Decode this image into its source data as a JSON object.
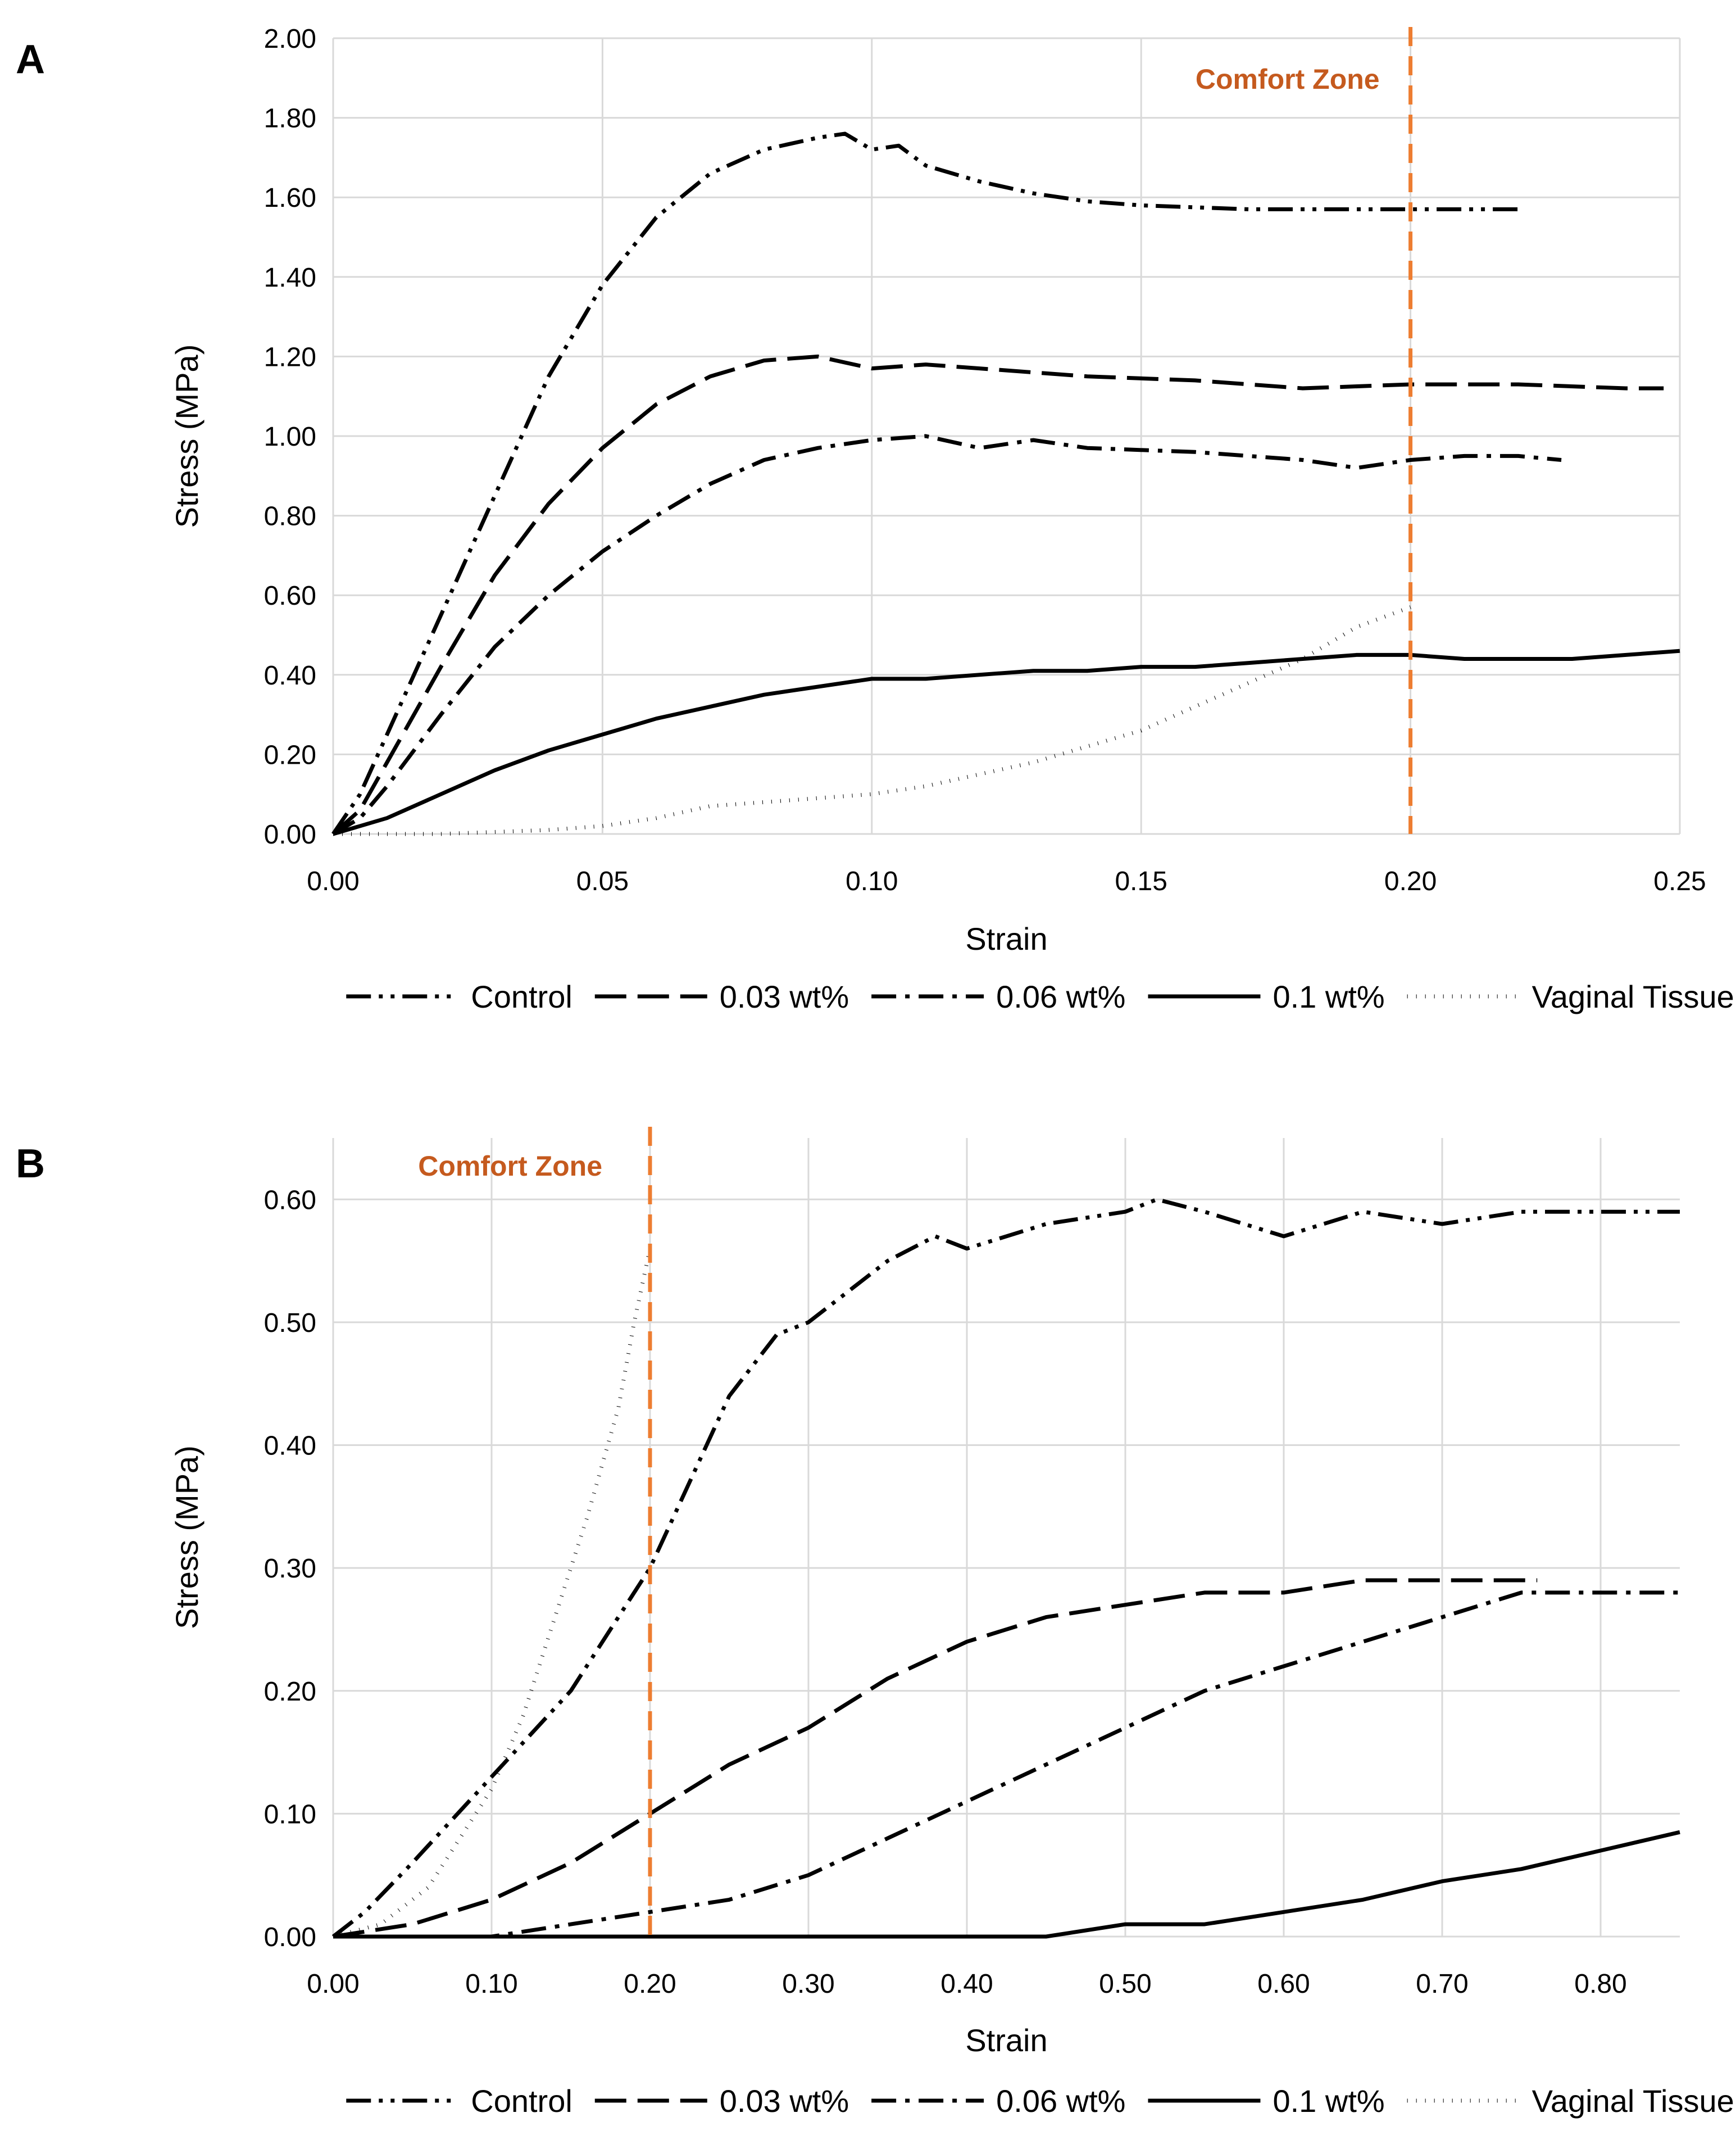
{
  "colors": {
    "comfort_line": "#ed7d31",
    "comfort_label": "#c55a1e",
    "series": "#000000",
    "grid": "#d9d9d9"
  },
  "chart_data": [
    {
      "type": "line",
      "panel": "A",
      "xlabel": "Strain",
      "ylabel": "Stress (MPa)",
      "xlim": [
        0,
        0.25
      ],
      "ylim": [
        0,
        2.0
      ],
      "x_ticks": [
        "0.00",
        "0.05",
        "0.10",
        "0.15",
        "0.20",
        "0.25"
      ],
      "y_ticks": [
        "0.00",
        "0.20",
        "0.40",
        "0.60",
        "0.80",
        "1.00",
        "1.20",
        "1.40",
        "1.60",
        "1.80",
        "2.00"
      ],
      "grid": true,
      "legend_position": "bottom",
      "annotation": {
        "text": "Comfort Zone",
        "x": 0.2
      },
      "series": [
        {
          "name": "Control",
          "dash": "dashdotdot",
          "x": [
            0,
            0.005,
            0.01,
            0.02,
            0.03,
            0.04,
            0.05,
            0.06,
            0.07,
            0.08,
            0.09,
            0.095,
            0.1,
            0.105,
            0.11,
            0.12,
            0.13,
            0.14,
            0.15,
            0.17,
            0.19,
            0.2,
            0.21,
            0.22
          ],
          "y": [
            0,
            0.1,
            0.25,
            0.55,
            0.85,
            1.15,
            1.38,
            1.55,
            1.66,
            1.72,
            1.75,
            1.76,
            1.72,
            1.73,
            1.68,
            1.64,
            1.61,
            1.59,
            1.58,
            1.57,
            1.57,
            1.57,
            1.57,
            1.57
          ]
        },
        {
          "name": "0.03 wt%",
          "dash": "longdash",
          "x": [
            0,
            0.005,
            0.01,
            0.02,
            0.03,
            0.04,
            0.05,
            0.06,
            0.07,
            0.08,
            0.09,
            0.1,
            0.11,
            0.12,
            0.14,
            0.16,
            0.18,
            0.2,
            0.22,
            0.24,
            0.247
          ],
          "y": [
            0,
            0.06,
            0.18,
            0.42,
            0.65,
            0.83,
            0.97,
            1.08,
            1.15,
            1.19,
            1.2,
            1.17,
            1.18,
            1.17,
            1.15,
            1.14,
            1.12,
            1.13,
            1.13,
            1.12,
            1.12
          ]
        },
        {
          "name": "0.06 wt%",
          "dash": "dashdot",
          "x": [
            0,
            0.005,
            0.01,
            0.02,
            0.03,
            0.04,
            0.05,
            0.06,
            0.07,
            0.08,
            0.09,
            0.1,
            0.11,
            0.12,
            0.13,
            0.14,
            0.16,
            0.18,
            0.19,
            0.2,
            0.21,
            0.22,
            0.228
          ],
          "y": [
            0,
            0.04,
            0.12,
            0.3,
            0.47,
            0.6,
            0.71,
            0.8,
            0.88,
            0.94,
            0.97,
            0.99,
            1.0,
            0.97,
            0.99,
            0.97,
            0.96,
            0.94,
            0.92,
            0.94,
            0.95,
            0.95,
            0.94
          ]
        },
        {
          "name": "0.1 wt%",
          "dash": "solid",
          "x": [
            0,
            0.01,
            0.02,
            0.03,
            0.04,
            0.05,
            0.06,
            0.07,
            0.08,
            0.09,
            0.1,
            0.11,
            0.12,
            0.13,
            0.14,
            0.15,
            0.16,
            0.17,
            0.18,
            0.19,
            0.2,
            0.21,
            0.22,
            0.23,
            0.24,
            0.25
          ],
          "y": [
            0,
            0.04,
            0.1,
            0.16,
            0.21,
            0.25,
            0.29,
            0.32,
            0.35,
            0.37,
            0.39,
            0.39,
            0.4,
            0.41,
            0.41,
            0.42,
            0.42,
            0.43,
            0.44,
            0.45,
            0.45,
            0.44,
            0.44,
            0.44,
            0.45,
            0.46
          ]
        },
        {
          "name": "Vaginal Tissue",
          "dash": "dotted",
          "x": [
            0,
            0.02,
            0.04,
            0.05,
            0.06,
            0.07,
            0.08,
            0.09,
            0.1,
            0.11,
            0.12,
            0.13,
            0.14,
            0.15,
            0.16,
            0.17,
            0.18,
            0.19,
            0.2
          ],
          "y": [
            0,
            0.0,
            0.01,
            0.02,
            0.04,
            0.07,
            0.08,
            0.09,
            0.1,
            0.12,
            0.15,
            0.18,
            0.22,
            0.26,
            0.32,
            0.38,
            0.44,
            0.52,
            0.57
          ]
        }
      ]
    },
    {
      "type": "line",
      "panel": "B",
      "xlabel": "Strain",
      "ylabel": "Stress (MPa)",
      "xlim": [
        0,
        0.85
      ],
      "ylim": [
        0,
        0.65
      ],
      "x_ticks": [
        "0.00",
        "0.10",
        "0.20",
        "0.30",
        "0.40",
        "0.50",
        "0.60",
        "0.70",
        "0.80"
      ],
      "y_ticks": [
        "0.00",
        "0.10",
        "0.20",
        "0.30",
        "0.40",
        "0.50",
        "0.60"
      ],
      "grid": true,
      "legend_position": "bottom",
      "annotation": {
        "text": "Comfort Zone",
        "x": 0.2
      },
      "series": [
        {
          "name": "Control",
          "dash": "dashdotdot",
          "x": [
            0,
            0.02,
            0.05,
            0.1,
            0.15,
            0.2,
            0.25,
            0.28,
            0.3,
            0.35,
            0.38,
            0.4,
            0.45,
            0.5,
            0.52,
            0.55,
            0.6,
            0.65,
            0.7,
            0.75,
            0.8,
            0.85
          ],
          "y": [
            0,
            0.02,
            0.06,
            0.13,
            0.2,
            0.3,
            0.44,
            0.49,
            0.5,
            0.55,
            0.57,
            0.56,
            0.58,
            0.59,
            0.6,
            0.59,
            0.57,
            0.59,
            0.58,
            0.59,
            0.59,
            0.59
          ]
        },
        {
          "name": "0.03 wt%",
          "dash": "longdash",
          "x": [
            0,
            0.05,
            0.1,
            0.15,
            0.2,
            0.25,
            0.3,
            0.35,
            0.4,
            0.45,
            0.5,
            0.55,
            0.6,
            0.65,
            0.7,
            0.75,
            0.76
          ],
          "y": [
            0,
            0.01,
            0.03,
            0.06,
            0.1,
            0.14,
            0.17,
            0.21,
            0.24,
            0.26,
            0.27,
            0.28,
            0.28,
            0.29,
            0.29,
            0.29,
            0.29
          ]
        },
        {
          "name": "0.06 wt%",
          "dash": "dashdot",
          "x": [
            0,
            0.1,
            0.15,
            0.2,
            0.25,
            0.3,
            0.35,
            0.4,
            0.45,
            0.5,
            0.55,
            0.6,
            0.65,
            0.7,
            0.75,
            0.8,
            0.85
          ],
          "y": [
            0,
            0.0,
            0.01,
            0.02,
            0.03,
            0.05,
            0.08,
            0.11,
            0.14,
            0.17,
            0.2,
            0.22,
            0.24,
            0.26,
            0.28,
            0.28,
            0.28
          ]
        },
        {
          "name": "0.1 wt%",
          "dash": "solid",
          "x": [
            0,
            0.2,
            0.4,
            0.45,
            0.5,
            0.55,
            0.6,
            0.65,
            0.7,
            0.75,
            0.8,
            0.85
          ],
          "y": [
            0,
            0,
            0,
            0.0,
            0.01,
            0.01,
            0.02,
            0.03,
            0.045,
            0.055,
            0.07,
            0.085
          ]
        },
        {
          "name": "Vaginal Tissue",
          "dash": "dotted",
          "x": [
            0,
            0.03,
            0.06,
            0.08,
            0.1,
            0.12,
            0.14,
            0.16,
            0.18,
            0.19,
            0.2
          ],
          "y": [
            0,
            0.01,
            0.04,
            0.08,
            0.12,
            0.18,
            0.26,
            0.34,
            0.43,
            0.5,
            0.56
          ]
        }
      ]
    }
  ]
}
